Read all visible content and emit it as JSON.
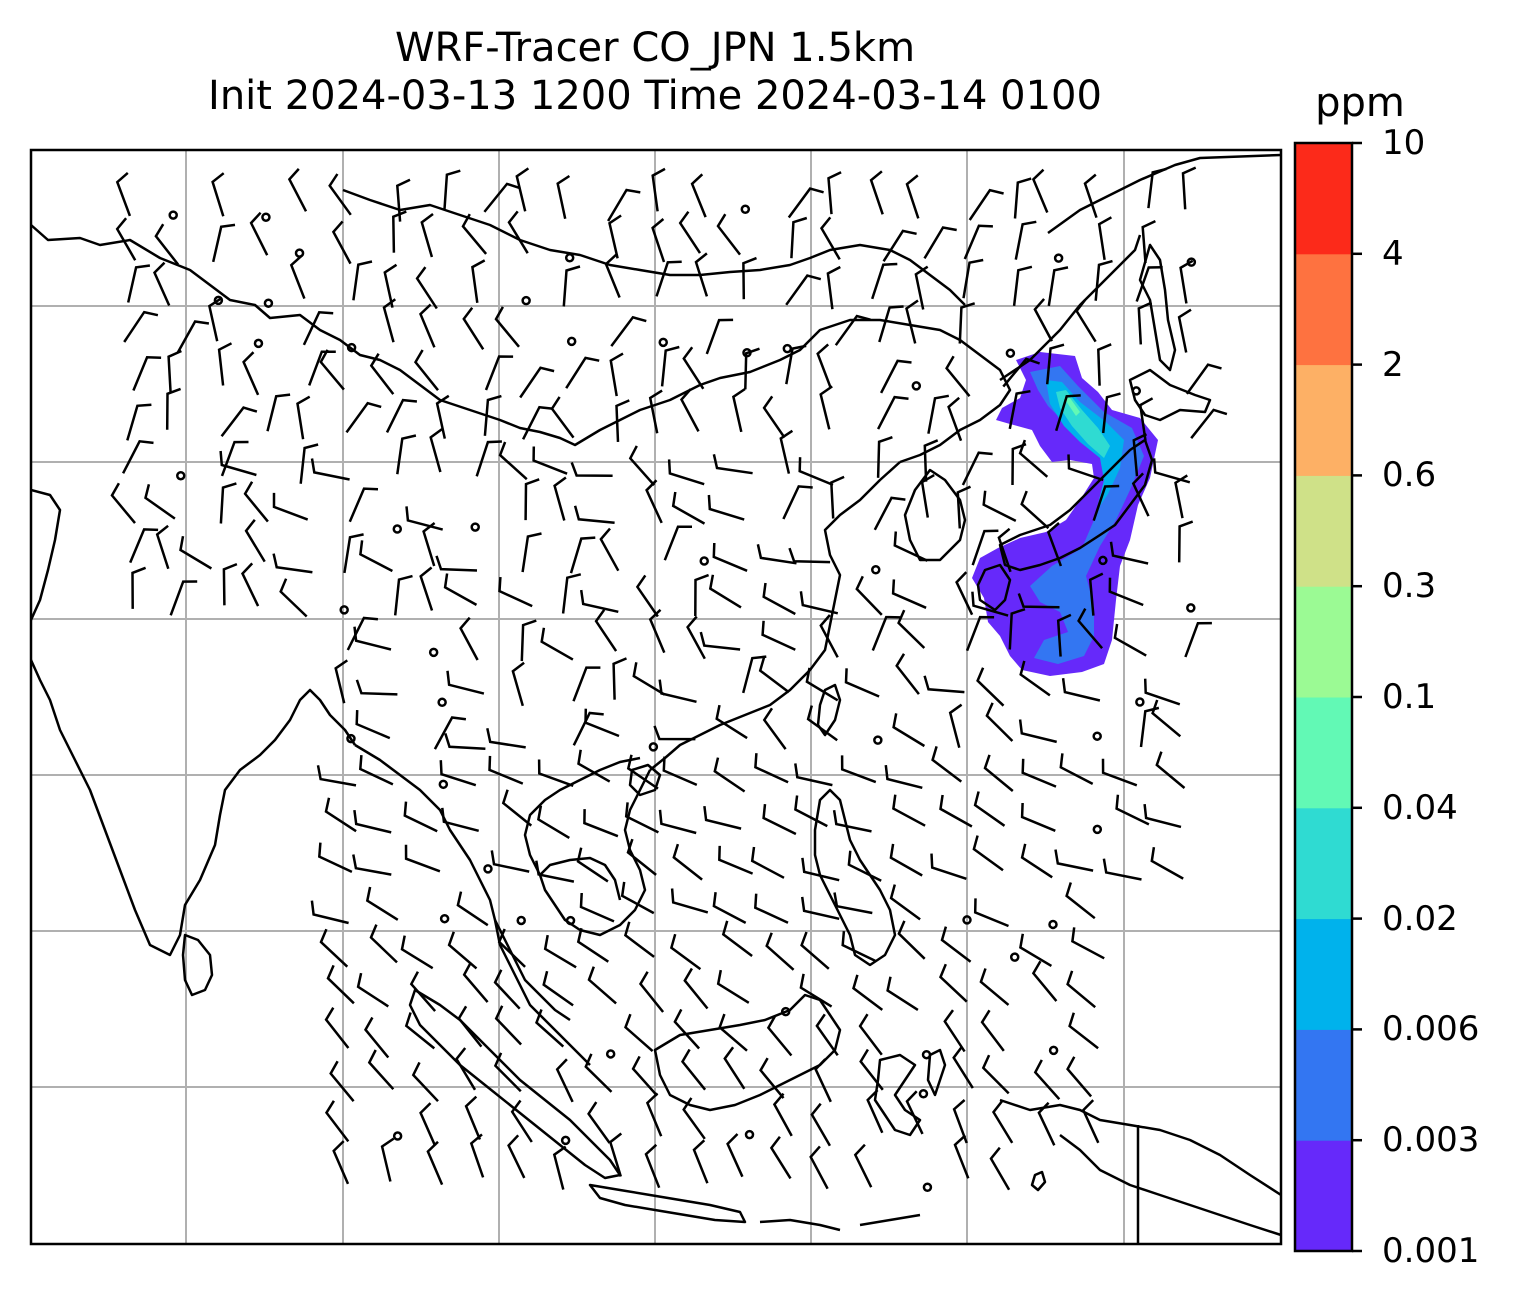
{
  "title": {
    "line1": "WRF-Tracer CO_JPN 1.5km",
    "line2": "Init 2024-03-13 1200 Time 2024-03-14 0100"
  },
  "colorbar": {
    "unit": "ppm",
    "ticks": [
      "0.001",
      "0.003",
      "0.006",
      "0.02",
      "0.04",
      "0.1",
      "0.3",
      "0.6",
      "2",
      "4",
      "10"
    ],
    "colors": [
      "#6629fa",
      "#3376f2",
      "#00b2ec",
      "#2fdbd2",
      "#62f9b5",
      "#9bfa94",
      "#cfe188",
      "#fdb065",
      "#fe7240",
      "#fc2a1a"
    ]
  },
  "map": {
    "background": "#ffffff",
    "coastline_color": "#000000",
    "gridline_color": "#b0b0b0",
    "barb_color": "#000000",
    "tracer_plume": {
      "species": "CO_JPN",
      "level": "1.5km",
      "dominant_levels": [
        "0.001",
        "0.003",
        "0.006",
        "0.02",
        "0.04"
      ]
    }
  }
}
